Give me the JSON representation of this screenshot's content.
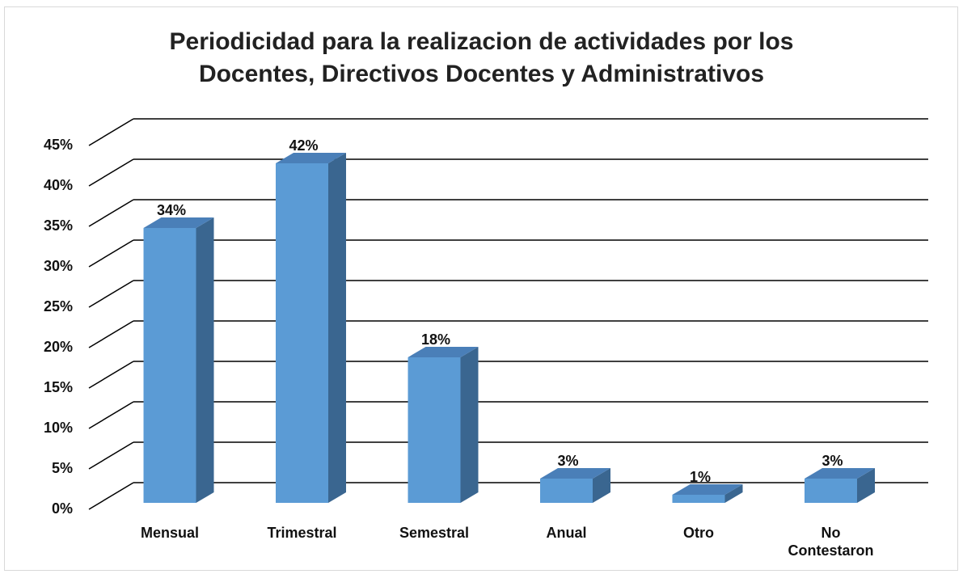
{
  "chart_data": {
    "type": "bar3d",
    "title": "Periodicidad para la realizacion de actividades por los\nDocentes, Directivos Docentes y Administrativos",
    "categories": [
      "Mensual",
      "Trimestral",
      "Semestral",
      "Anual",
      "Otro",
      "No\nContestaron"
    ],
    "values": [
      34,
      42,
      18,
      3,
      1,
      3
    ],
    "value_labels": [
      "34%",
      "42%",
      "18%",
      "3%",
      "1%",
      "3%"
    ],
    "color": "#5b9bd5",
    "ylim": [
      0,
      45
    ],
    "yticks": [
      {
        "value": 0,
        "label": "0%"
      },
      {
        "value": 5,
        "label": "5%"
      },
      {
        "value": 10,
        "label": "10%"
      },
      {
        "value": 15,
        "label": "15%"
      },
      {
        "value": 20,
        "label": "20%"
      },
      {
        "value": 25,
        "label": "25%"
      },
      {
        "value": 30,
        "label": "30%"
      },
      {
        "value": 35,
        "label": "35%"
      },
      {
        "value": 40,
        "label": "40%"
      },
      {
        "value": 45,
        "label": "45%"
      }
    ],
    "grid": true
  }
}
